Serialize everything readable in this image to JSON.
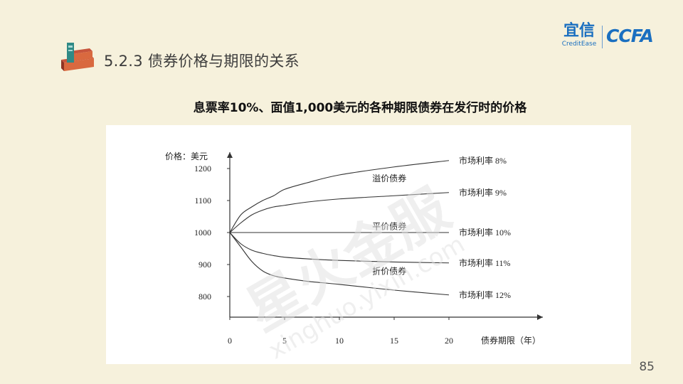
{
  "slide": {
    "section_title": "5.2.3 债券价格与期限的关系",
    "page_number": "85"
  },
  "logos": {
    "yixin_cn": "宜信",
    "yixin_en": "CreditEase",
    "ccfa": "CCFA"
  },
  "watermark": {
    "text_cn": "星火金服",
    "text_en": "xinghuo.yixin.com"
  },
  "chart_data": {
    "type": "line",
    "title": "息票率10%、面值1,000美元的各种期限债券在发行时的价格",
    "ylabel": "价格：美元",
    "xlabel": "债券期限（年）",
    "x_ticks": [
      0,
      5,
      10,
      15,
      20
    ],
    "y_ticks": [
      800,
      900,
      1000,
      1100,
      1200
    ],
    "xlim": [
      0,
      20
    ],
    "ylim": [
      750,
      1250
    ],
    "grid": false,
    "series": [
      {
        "name": "市场利率 8%",
        "x": [
          0,
          1,
          2,
          3,
          4,
          5,
          7,
          10,
          15,
          20
        ],
        "y": [
          1000,
          1055,
          1080,
          1100,
          1115,
          1135,
          1155,
          1180,
          1205,
          1225
        ]
      },
      {
        "name": "市场利率 9%",
        "x": [
          0,
          1,
          2,
          3,
          4,
          5,
          7,
          10,
          15,
          20
        ],
        "y": [
          1000,
          1030,
          1055,
          1070,
          1080,
          1085,
          1095,
          1105,
          1115,
          1125
        ]
      },
      {
        "name": "市场利率 10%",
        "x": [
          0,
          5,
          10,
          15,
          20
        ],
        "y": [
          1000,
          1000,
          1000,
          1000,
          1000
        ]
      },
      {
        "name": "市场利率 11%",
        "x": [
          0,
          1,
          2,
          3,
          4,
          5,
          7,
          10,
          15,
          20
        ],
        "y": [
          1000,
          965,
          945,
          935,
          928,
          923,
          918,
          913,
          908,
          905
        ]
      },
      {
        "name": "市场利率 12%",
        "x": [
          0,
          1,
          2,
          3,
          4,
          5,
          7,
          10,
          15,
          20
        ],
        "y": [
          1000,
          955,
          910,
          880,
          865,
          858,
          848,
          838,
          820,
          805
        ]
      }
    ],
    "annotations": [
      {
        "text": "溢价债券",
        "x": 15.6,
        "y": 1160
      },
      {
        "text": "平价债券",
        "x": 15.6,
        "y": 1010
      },
      {
        "text": "折价债券",
        "x": 15.6,
        "y": 870
      }
    ]
  }
}
